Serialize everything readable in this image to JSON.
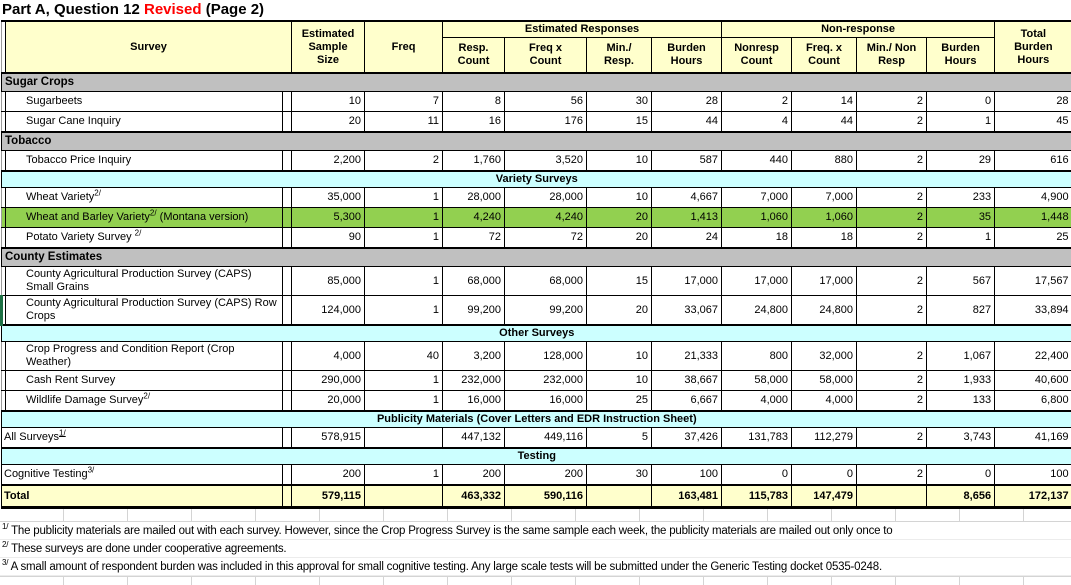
{
  "title": {
    "prefix": "Part A, Question 12 ",
    "revised": "Revised",
    "suffix": " (Page 2)"
  },
  "colors": {
    "header_bg": "#FFFFCC",
    "section_gray": "#C0C0C0",
    "section_cyan": "#CCFFFF",
    "highlight_green": "#92D050",
    "total_bg": "#FFFFCC",
    "revised_red": "#FF0000",
    "row_marker_green": "#1E7145",
    "gridline_gray": "#D4D4D4"
  },
  "header": {
    "survey": "Survey",
    "sample_size_lines": "Estimated\nSample\nSize",
    "freq": "Freq",
    "groups": [
      {
        "label": "Estimated Responses",
        "cols": [
          "Resp.\nCount",
          "Freq x\nCount",
          "Min./ Resp.",
          "Burden\nHours"
        ]
      },
      {
        "label": "Non-response",
        "cols": [
          "Nonresp\nCount",
          "Freq. x\nCount",
          "Min./ Non\nResp",
          "Burden\nHours"
        ]
      }
    ],
    "total_lines": "Total\nBurden\nHours"
  },
  "rows": [
    {
      "type": "gray",
      "label": "Sugar Crops"
    },
    {
      "type": "data",
      "label": "Sugarbeets",
      "indent": true,
      "values": [
        "10",
        "7",
        "8",
        "56",
        "30",
        "28",
        "2",
        "14",
        "2",
        "0",
        "28"
      ]
    },
    {
      "type": "data",
      "label": "Sugar Cane Inquiry",
      "indent": true,
      "values": [
        "20",
        "11",
        "16",
        "176",
        "15",
        "44",
        "4",
        "44",
        "2",
        "1",
        "45"
      ]
    },
    {
      "type": "gray",
      "label": "Tobacco"
    },
    {
      "type": "data",
      "label": "Tobacco Price Inquiry",
      "indent": true,
      "values": [
        "2,200",
        "2",
        "1,760",
        "3,520",
        "10",
        "587",
        "440",
        "880",
        "2",
        "29",
        "616"
      ]
    },
    {
      "type": "cyan",
      "label": "Variety Surveys"
    },
    {
      "type": "data",
      "label": "Wheat Variety",
      "sup": "2/",
      "indent": true,
      "values": [
        "35,000",
        "1",
        "28,000",
        "28,000",
        "10",
        "4,667",
        "7,000",
        "7,000",
        "2",
        "233",
        "4,900"
      ]
    },
    {
      "type": "data",
      "label": "Wheat and Barley Variety",
      "sup": "2/",
      "suffix": " (Montana version)",
      "indent": true,
      "bg": "green",
      "values": [
        "5,300",
        "1",
        "4,240",
        "4,240",
        "20",
        "1,413",
        "1,060",
        "1,060",
        "2",
        "35",
        "1,448"
      ]
    },
    {
      "type": "data",
      "label": "Potato Variety Survey ",
      "sup": "2/",
      "indent": true,
      "values": [
        "90",
        "1",
        "72",
        "72",
        "20",
        "24",
        "18",
        "18",
        "2",
        "1",
        "25"
      ]
    },
    {
      "type": "gray",
      "label": "County Estimates"
    },
    {
      "type": "data",
      "label": "County Agricultural Production Survey (CAPS) Small Grains",
      "indent": true,
      "values": [
        "85,000",
        "1",
        "68,000",
        "68,000",
        "15",
        "17,000",
        "17,000",
        "17,000",
        "2",
        "567",
        "17,567"
      ]
    },
    {
      "type": "data",
      "label": "County Agricultural Production Survey (CAPS) Row Crops",
      "indent": true,
      "marker": true,
      "values": [
        "124,000",
        "1",
        "99,200",
        "99,200",
        "20",
        "33,067",
        "24,800",
        "24,800",
        "2",
        "827",
        "33,894"
      ]
    },
    {
      "type": "cyan",
      "label": "Other Surveys"
    },
    {
      "type": "data",
      "label": "Crop Progress and Condition Report (Crop Weather)",
      "indent": true,
      "values": [
        "4,000",
        "40",
        "3,200",
        "128,000",
        "10",
        "21,333",
        "800",
        "32,000",
        "2",
        "1,067",
        "22,400"
      ]
    },
    {
      "type": "data",
      "label": "Cash Rent Survey",
      "indent": true,
      "values": [
        "290,000",
        "1",
        "232,000",
        "232,000",
        "10",
        "38,667",
        "58,000",
        "58,000",
        "2",
        "1,933",
        "40,600"
      ]
    },
    {
      "type": "data",
      "label": "Wildlife Damage Survey",
      "sup": "2/",
      "indent": true,
      "values": [
        "20,000",
        "1",
        "16,000",
        "16,000",
        "25",
        "6,667",
        "4,000",
        "4,000",
        "2",
        "133",
        "6,800"
      ]
    },
    {
      "type": "cyan",
      "label": "Publicity Materials (Cover Letters and EDR Instruction Sheet)"
    },
    {
      "type": "data",
      "label": "All Surveys",
      "sup": "1/",
      "sup_underline": true,
      "indent": false,
      "values": [
        "578,915",
        "",
        "447,132",
        "449,116",
        "5",
        "37,426",
        "131,783",
        "112,279",
        "2",
        "3,743",
        "41,169"
      ]
    },
    {
      "type": "cyan",
      "label": "Testing"
    },
    {
      "type": "data",
      "label": "Cognitive Testing",
      "sup": "3/",
      "indent": false,
      "values": [
        "200",
        "1",
        "200",
        "200",
        "30",
        "100",
        "0",
        "0",
        "2",
        "0",
        "100"
      ]
    },
    {
      "type": "total",
      "label": "Total",
      "indent": false,
      "values": [
        "579,115",
        "",
        "463,332",
        "590,116",
        "",
        "163,481",
        "115,783",
        "147,479",
        "",
        "8,656",
        "172,137"
      ]
    }
  ],
  "footnotes": [
    {
      "sup": "1/",
      "text": "The publicity materials are mailed out with each survey.  However, since the Crop Progress Survey is the same sample each week, the publicity materials are mailed out only once to"
    },
    {
      "sup": "2/",
      "text": "These surveys are done under cooperative agreements."
    },
    {
      "sup": "3/",
      "text": "A small amount of respondent burden was included in this approval for small cognitive testing.  Any large scale tests will be submitted under the Generic Testing docket 0535-0248."
    }
  ]
}
